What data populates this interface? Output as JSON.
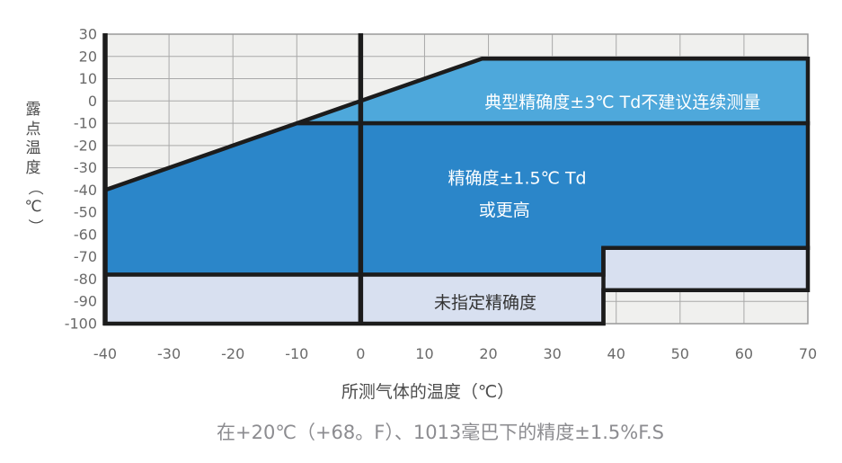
{
  "colors": {
    "light_blue": "#4ea8db",
    "dark_blue": "#2b86c9",
    "lavender": "#d8e0f0",
    "plot_bg": "#f0f0ee",
    "grid": "#a9a9a9",
    "frame_thin": "#999999",
    "boundary": "#1c1c1c",
    "white": "#ffffff",
    "dark_text": "#333333",
    "tick_text": "#6a6a6a"
  },
  "chart_data": {
    "type": "area",
    "title": "",
    "xlabel": "所测气体的温度（℃）",
    "ylabel": "露点温度（℃）",
    "xlim": [
      -40,
      70
    ],
    "ylim": [
      -100,
      30
    ],
    "grid": "on",
    "x_ticks": [
      -40,
      -30,
      -20,
      -10,
      0,
      10,
      20,
      30,
      40,
      50,
      60,
      70
    ],
    "y_ticks": [
      30,
      20,
      10,
      0,
      -10,
      -20,
      -30,
      -40,
      -50,
      -60,
      -70,
      -80,
      -90,
      -100
    ],
    "regions": [
      {
        "name": "typical-accuracy-region",
        "fill": "light_blue",
        "text_fill": "white",
        "points": [
          [
            -10,
            -10
          ],
          [
            19,
            19
          ],
          [
            70,
            19
          ],
          [
            70,
            -10
          ]
        ],
        "labels": [
          {
            "text": "典型精确度±3℃ Td不建议连续测量",
            "x": 41,
            "y": -0.5
          }
        ]
      },
      {
        "name": "high-accuracy-region",
        "fill": "dark_blue",
        "text_fill": "white",
        "points": [
          [
            -40,
            -40
          ],
          [
            -10,
            -10
          ],
          [
            70,
            -10
          ],
          [
            70,
            -66
          ],
          [
            38,
            -66
          ],
          [
            38,
            -78
          ],
          [
            -40,
            -78
          ]
        ],
        "labels": [
          {
            "text": "精确度±1.5℃ Td",
            "x": 24.5,
            "y": -34.5
          },
          {
            "text": "或更高",
            "x": 22.5,
            "y": -49
          }
        ]
      },
      {
        "name": "unspecified-accuracy-region",
        "fill": "lavender",
        "text_fill": "dark_text",
        "points": [
          [
            -40,
            -78
          ],
          [
            38,
            -78
          ],
          [
            38,
            -66
          ],
          [
            70,
            -66
          ],
          [
            70,
            -85
          ],
          [
            38,
            -85
          ],
          [
            38,
            -100
          ],
          [
            -40,
            -100
          ]
        ],
        "labels": [
          {
            "text": "未指定精确度",
            "x": 19.5,
            "y": -90.5
          }
        ]
      }
    ],
    "axis_lines": [
      {
        "name": "y-axis-line",
        "x": -40,
        "y1": 30,
        "y2": -100
      },
      {
        "name": "zero-line",
        "x": 0,
        "y1": 30,
        "y2": -100
      },
      {
        "name": "step-line",
        "x": 38,
        "y1": -66,
        "y2": -100
      }
    ]
  },
  "caption": {
    "text": "在+20℃（+68。F）、1013毫巴下的精度±1.5%F.S"
  }
}
